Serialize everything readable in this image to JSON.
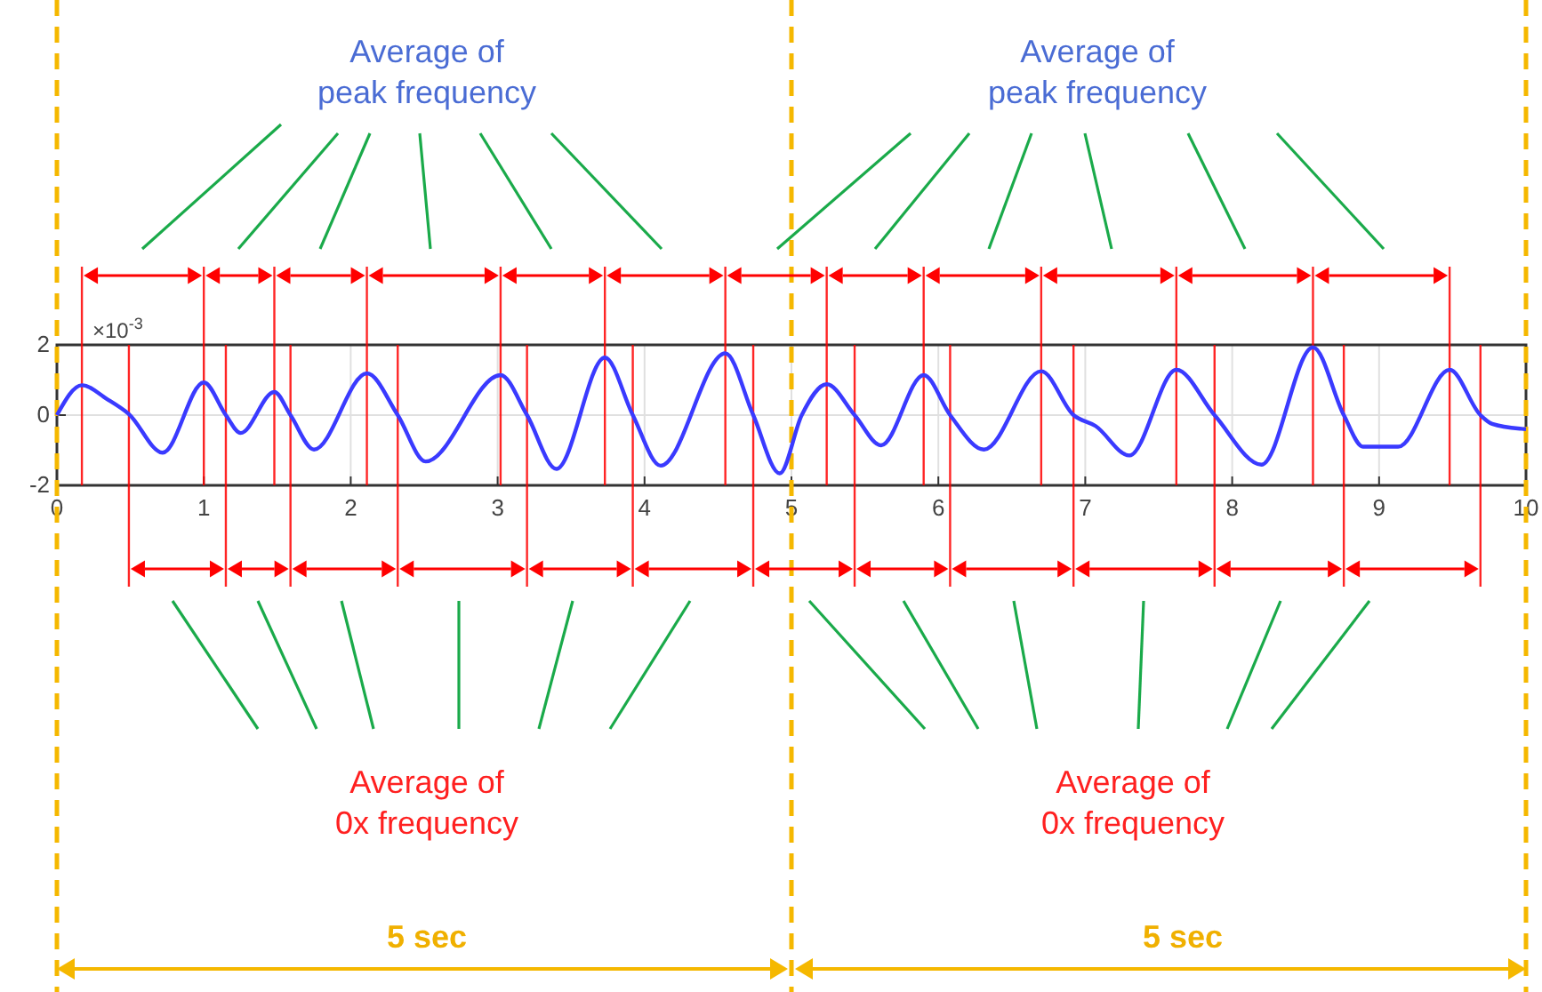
{
  "chart_data": {
    "type": "line",
    "annotations": [
      "Average of peak frequency",
      "Average of peak frequency",
      "Average of 0x frequency",
      "Average of 0x frequency",
      "5 sec",
      "5 sec",
      "×10$^{-3}$"
    ],
    "xlim": [
      0,
      10
    ],
    "xticks": [
      0,
      1,
      2,
      3,
      4,
      5,
      6,
      7,
      8,
      9,
      10
    ],
    "ylim": [
      -2,
      2
    ],
    "yticks": [
      -2,
      0,
      2
    ],
    "grid": true,
    "series": [
      {
        "color": "#3a3aff",
        "x": [
          0,
          0.17,
          0.34,
          0.49,
          0.72,
          1.0,
          1.15,
          1.25,
          1.48,
          1.59,
          1.75,
          2.11,
          2.32,
          2.51,
          3.02,
          3.2,
          3.4,
          3.73,
          3.92,
          4.11,
          4.55,
          4.74,
          4.92,
          5.07,
          5.24,
          5.43,
          5.61,
          5.9,
          6.08,
          6.31,
          6.7,
          6.92,
          7.07,
          7.3,
          7.62,
          7.88,
          8.2,
          8.55,
          8.76,
          8.89,
          9.13,
          9.48,
          9.69,
          9.77,
          9.97,
          10
        ],
        "values": [
          0,
          0.85,
          0.46,
          0.03,
          -1.07,
          0.93,
          0,
          -0.51,
          0.66,
          0,
          -0.98,
          1.19,
          0,
          -1.32,
          1.14,
          0,
          -1.53,
          1.64,
          0,
          -1.44,
          1.76,
          0,
          -1.66,
          0,
          0.88,
          0,
          -0.86,
          1.14,
          0,
          -0.98,
          1.25,
          0,
          -0.31,
          -1.15,
          1.29,
          0,
          -1.41,
          1.93,
          0,
          -0.9,
          -0.9,
          1.29,
          0,
          -0.25,
          -0.39,
          -0.4
        ]
      }
    ],
    "ref_lines": [
      {
        "axis": "x",
        "value": 0.17,
        "color": "#ff0000"
      },
      {
        "axis": "x",
        "value": 1.0,
        "color": "#ff0000"
      },
      {
        "axis": "x",
        "value": 1.48,
        "color": "#ff0000"
      },
      {
        "axis": "x",
        "value": 2.11,
        "color": "#ff0000"
      },
      {
        "axis": "x",
        "value": 3.02,
        "color": "#ff0000"
      },
      {
        "axis": "x",
        "value": 3.73,
        "color": "#ff0000"
      },
      {
        "axis": "x",
        "value": 4.55,
        "color": "#ff0000"
      },
      {
        "axis": "x",
        "value": 5.24,
        "color": "#ff0000"
      },
      {
        "axis": "x",
        "value": 5.9,
        "color": "#ff0000"
      },
      {
        "axis": "x",
        "value": 6.7,
        "color": "#ff0000"
      },
      {
        "axis": "x",
        "value": 7.62,
        "color": "#ff0000"
      },
      {
        "axis": "x",
        "value": 8.55,
        "color": "#ff0000"
      },
      {
        "axis": "x",
        "value": 9.48,
        "color": "#ff0000"
      },
      {
        "axis": "x",
        "value": 0.49,
        "color": "#ff0000"
      },
      {
        "axis": "x",
        "value": 1.15,
        "color": "#ff0000"
      },
      {
        "axis": "x",
        "value": 1.59,
        "color": "#ff0000"
      },
      {
        "axis": "x",
        "value": 2.32,
        "color": "#ff0000"
      },
      {
        "axis": "x",
        "value": 3.2,
        "color": "#ff0000"
      },
      {
        "axis": "x",
        "value": 3.92,
        "color": "#ff0000"
      },
      {
        "axis": "x",
        "value": 4.74,
        "color": "#ff0000"
      },
      {
        "axis": "x",
        "value": 5.43,
        "color": "#ff0000"
      },
      {
        "axis": "x",
        "value": 6.08,
        "color": "#ff0000"
      },
      {
        "axis": "x",
        "value": 6.92,
        "color": "#ff0000"
      },
      {
        "axis": "x",
        "value": 7.88,
        "color": "#ff0000"
      },
      {
        "axis": "x",
        "value": 8.76,
        "color": "#ff0000"
      },
      {
        "axis": "x",
        "value": 9.69,
        "color": "#ff0000"
      },
      {
        "axis": "x",
        "value": 0,
        "color": "#f5b800",
        "line_style": "dashed"
      },
      {
        "axis": "x",
        "value": 5,
        "color": "#f5b800",
        "line_style": "dashed"
      },
      {
        "axis": "x",
        "value": 10,
        "color": "#f5b800",
        "line_style": "dashed"
      }
    ]
  }
}
